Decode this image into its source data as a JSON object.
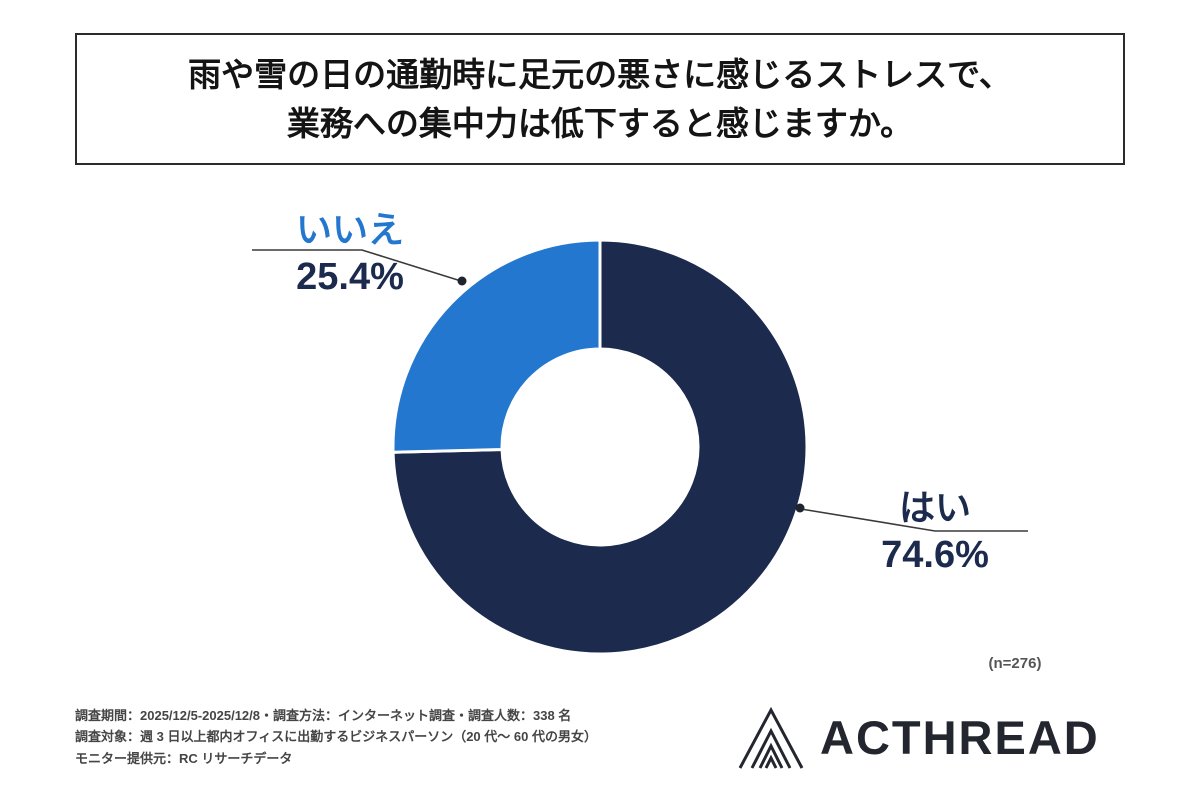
{
  "title": {
    "line1": "雨や雪の日の通勤時に足元の悪さに感じるストレスで、",
    "line2": "業務への集中力は低下すると感じますか。"
  },
  "chart_data": {
    "type": "pie",
    "donut": true,
    "start_angle": "top",
    "direction": "clockwise",
    "labels": [
      "はい",
      "いいえ"
    ],
    "values": [
      74.6,
      25.4
    ],
    "value_labels": [
      "74.6%",
      "25.4%"
    ],
    "colors": [
      "#1b2a4d",
      "#2377cf"
    ],
    "n": 276,
    "n_label": "(n=276)",
    "legend_position": "callouts"
  },
  "footer": {
    "line1": "調査期間：2025/12/5-2025/12/8・調査方法：インターネット調査・調査人数：338 名",
    "line2": "調査対象：週 3 日以上都内オフィスに出勤するビジネスパーソン（20 代〜 60 代の男女）",
    "line3": "モニター提供元：RC リサーチデータ"
  },
  "brand": {
    "name": "ACTHREAD",
    "icon": "chevron-triangle-logo"
  }
}
